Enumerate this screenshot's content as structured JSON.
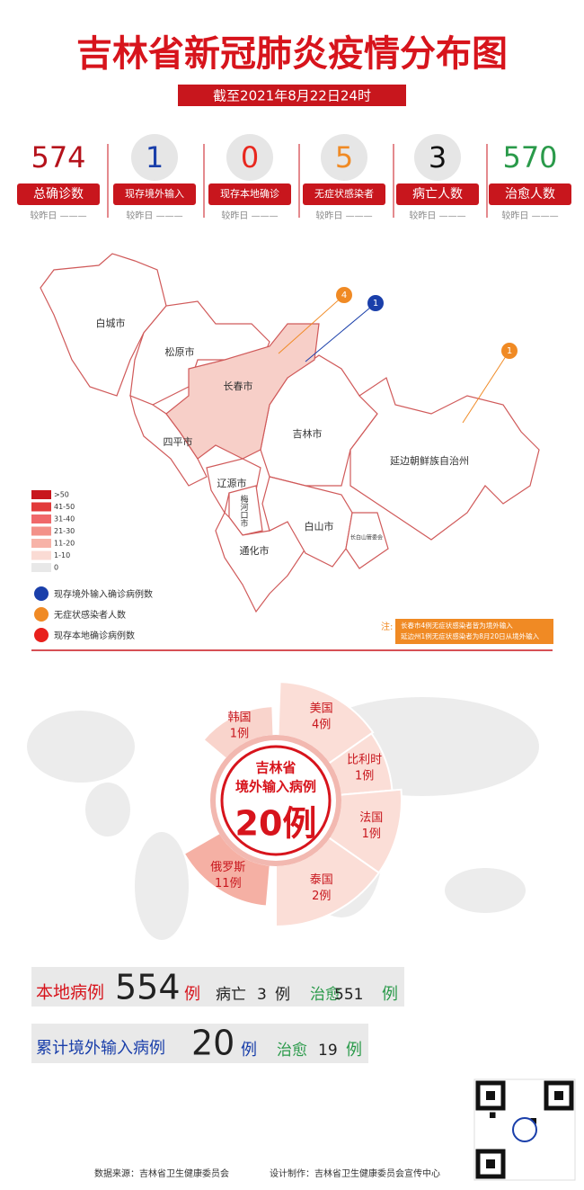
{
  "header": {
    "title": "吉林省新冠肺炎疫情分布图",
    "date": "截至2021年8月22日24时"
  },
  "stats": [
    {
      "value": 574,
      "label": "总确诊数",
      "compare": "较昨日 ———"
    },
    {
      "value": 1,
      "label": "现存境外输入",
      "compare": "较昨日 ———"
    },
    {
      "value": 0,
      "label": "现存本地确诊",
      "compare": "较昨日 ———"
    },
    {
      "value": 5,
      "label": "无症状感染者",
      "compare": "较昨日 ———"
    },
    {
      "value": 3,
      "label": "病亡人数",
      "compare": "较昨日 ———"
    },
    {
      "value": 570,
      "label": "治愈人数",
      "compare": "较昨日 ———"
    }
  ],
  "map": {
    "regions": [
      "白城市",
      "松原市",
      "长春市",
      "吉林市",
      "四平市",
      "辽源市",
      "梅河口市",
      "通化市",
      "白山市",
      "长白山管委会",
      "延边朝鲜族自治州"
    ],
    "callouts": [
      4,
      1,
      1
    ],
    "legend": [
      ">50",
      "41-50",
      "31-40",
      "21-30",
      "11-20",
      "1-10",
      0
    ],
    "markers": [
      "现存境外输入确诊病例数",
      "无症状感染者人数",
      "现存本地确诊病例数"
    ],
    "note": {
      "label": "注:",
      "lines": [
        "长春市4例无症状感染者皆为境外输入",
        "延边州1例无症状感染者为8月20日从境外输入"
      ]
    }
  },
  "imported": {
    "title": "吉林省",
    "subtitle": "境外输入病例",
    "total": "20例",
    "countries": [
      {
        "name": "韩国",
        "cases": "1例"
      },
      {
        "name": "美国",
        "cases": "4例"
      },
      {
        "name": "比利时",
        "cases": "1例"
      },
      {
        "name": "法国",
        "cases": "1例"
      },
      {
        "name": "泰国",
        "cases": "2例"
      },
      {
        "name": "俄罗斯",
        "cases": "11例"
      }
    ]
  },
  "summary": {
    "local": {
      "label": "本地病例",
      "value": 554,
      "unit": "例",
      "death_label": "病亡",
      "deaths": 3,
      "death_unit": "例",
      "cured_label": "治愈",
      "cured": 551,
      "cured_unit": "例"
    },
    "imported": {
      "label": "累计境外输入病例",
      "value": 20,
      "unit": "例",
      "cured_label": "治愈",
      "cured": 19,
      "cured_unit": "例"
    }
  },
  "footer": {
    "source": "数据来源：吉林省卫生健康委员会",
    "design": "设计制作：吉林省卫生健康委员会宣传中心"
  }
}
